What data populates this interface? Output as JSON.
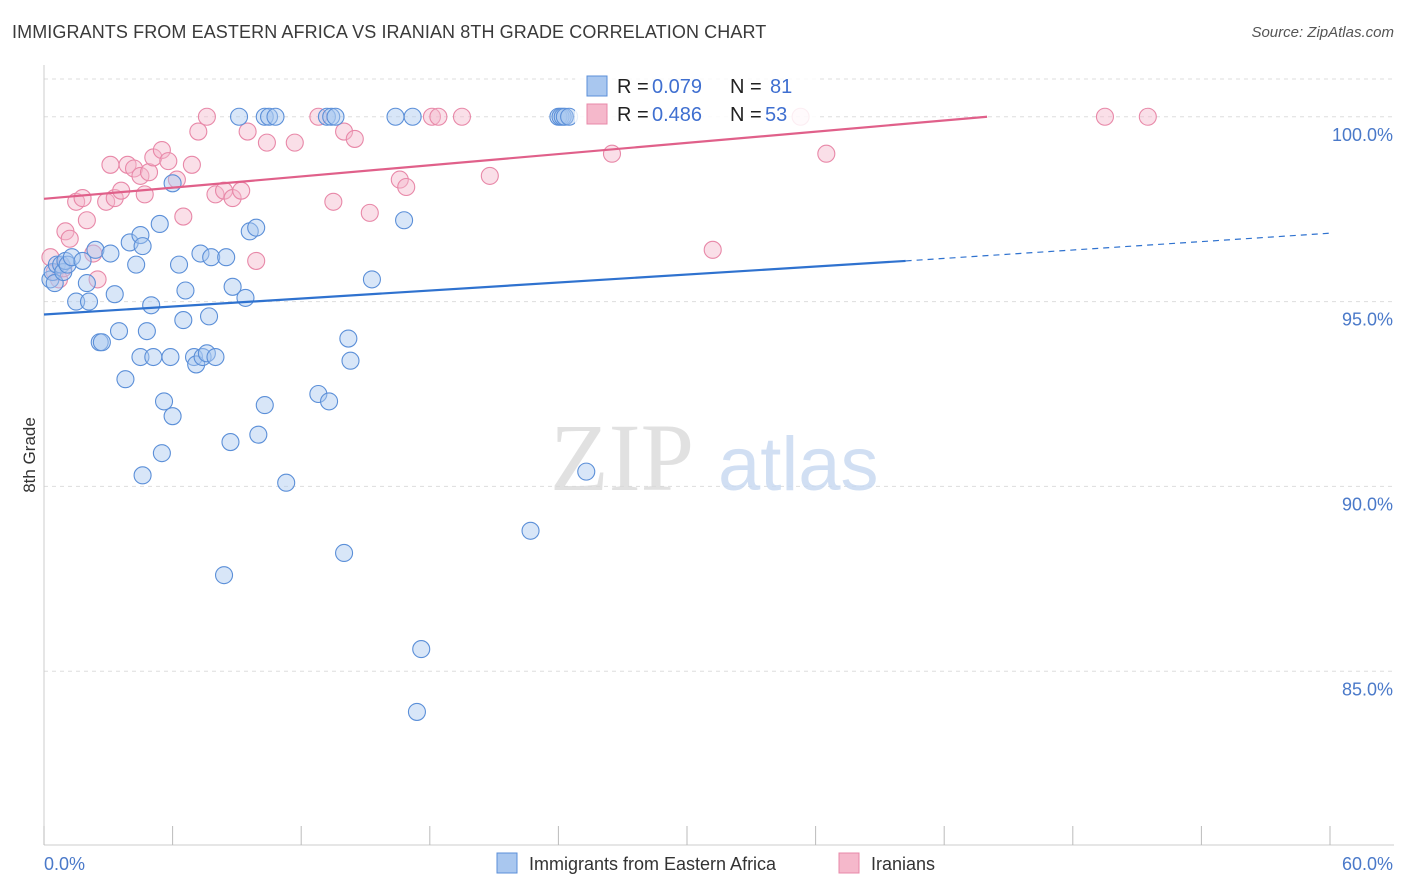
{
  "title": "IMMIGRANTS FROM EASTERN AFRICA VS IRANIAN 8TH GRADE CORRELATION CHART",
  "source": "Source: ZipAtlas.com",
  "watermark": {
    "zip": "ZIP",
    "atlas": "atlas"
  },
  "colors": {
    "blue_fill": "#a9c7ef",
    "blue_stroke": "#5b8fd8",
    "blue_line": "#2f72cf",
    "pink_fill": "#f5b8cb",
    "pink_stroke": "#e888a8",
    "pink_line": "#e0608a",
    "label_blue": "#4a79c9",
    "grid": "#dddddd"
  },
  "stats": {
    "blue": {
      "r_label": "R = ",
      "r_value": "0.079",
      "n_label": "N = ",
      "n_value": "81"
    },
    "pink": {
      "r_label": "R = ",
      "r_value": "0.486",
      "n_label": "N = ",
      "n_value": "53"
    }
  },
  "legend": [
    "Immigrants from Eastern Africa",
    "Iranians"
  ],
  "chart_data": {
    "type": "scatter",
    "title": "IMMIGRANTS FROM EASTERN AFRICA VS IRANIAN 8TH GRADE CORRELATION CHART",
    "xlabel": "",
    "ylabel": "8th Grade",
    "xlim": [
      0,
      60
    ],
    "ylim": [
      80.3,
      101.4
    ],
    "x_tick_labels": [
      "0.0%",
      "60.0%"
    ],
    "y_ticks": [
      85,
      90,
      95,
      100
    ],
    "y_tick_labels": [
      "85.0%",
      "90.0%",
      "95.0%",
      "100.0%"
    ],
    "grid": true,
    "legend_position": "bottom",
    "series": [
      {
        "name": "Immigrants from Eastern Africa",
        "color": "#a9c7ef",
        "trend": {
          "x": [
            0,
            40.2
          ],
          "y": [
            94.65,
            96.1
          ],
          "dashed_to": [
            60,
            96.85
          ]
        },
        "points": [
          [
            0.3,
            95.6
          ],
          [
            0.4,
            95.8
          ],
          [
            0.5,
            95.5
          ],
          [
            0.6,
            96.0
          ],
          [
            0.8,
            96.0
          ],
          [
            0.9,
            95.8
          ],
          [
            1.0,
            96.1
          ],
          [
            1.1,
            96.0
          ],
          [
            1.3,
            96.2
          ],
          [
            1.5,
            95.0
          ],
          [
            1.8,
            96.1
          ],
          [
            2.0,
            95.5
          ],
          [
            2.1,
            95.0
          ],
          [
            2.4,
            96.4
          ],
          [
            2.6,
            93.9
          ],
          [
            2.7,
            93.9
          ],
          [
            3.1,
            96.3
          ],
          [
            3.3,
            95.2
          ],
          [
            3.5,
            94.2
          ],
          [
            3.8,
            92.9
          ],
          [
            4.0,
            96.6
          ],
          [
            4.3,
            96.0
          ],
          [
            4.5,
            96.8
          ],
          [
            4.5,
            93.5
          ],
          [
            4.6,
            96.5
          ],
          [
            4.6,
            90.3
          ],
          [
            4.8,
            94.2
          ],
          [
            5.0,
            94.9
          ],
          [
            5.1,
            93.5
          ],
          [
            5.4,
            97.1
          ],
          [
            5.5,
            90.9
          ],
          [
            5.6,
            92.3
          ],
          [
            5.9,
            93.5
          ],
          [
            6.0,
            91.9
          ],
          [
            6.0,
            98.2
          ],
          [
            6.3,
            96.0
          ],
          [
            6.5,
            94.5
          ],
          [
            6.6,
            95.3
          ],
          [
            7.0,
            93.5
          ],
          [
            7.1,
            93.3
          ],
          [
            7.3,
            96.3
          ],
          [
            7.4,
            93.5
          ],
          [
            7.6,
            93.6
          ],
          [
            7.7,
            94.6
          ],
          [
            7.8,
            96.2
          ],
          [
            8.0,
            93.5
          ],
          [
            8.4,
            87.6
          ],
          [
            8.5,
            96.2
          ],
          [
            8.7,
            91.2
          ],
          [
            8.8,
            95.4
          ],
          [
            9.1,
            100.0
          ],
          [
            9.4,
            95.1
          ],
          [
            9.6,
            96.9
          ],
          [
            9.9,
            97.0
          ],
          [
            10.0,
            91.4
          ],
          [
            10.3,
            92.2
          ],
          [
            10.3,
            100.0
          ],
          [
            10.5,
            100.0
          ],
          [
            10.8,
            100.0
          ],
          [
            11.3,
            90.1
          ],
          [
            12.8,
            92.5
          ],
          [
            13.2,
            100.0
          ],
          [
            13.3,
            92.3
          ],
          [
            13.4,
            100.0
          ],
          [
            13.6,
            100.0
          ],
          [
            14.0,
            88.2
          ],
          [
            14.2,
            94.0
          ],
          [
            14.3,
            93.4
          ],
          [
            15.3,
            95.6
          ],
          [
            16.4,
            100.0
          ],
          [
            16.8,
            97.2
          ],
          [
            17.2,
            100.0
          ],
          [
            17.4,
            83.9
          ],
          [
            17.6,
            85.6
          ],
          [
            22.7,
            88.8
          ],
          [
            24.0,
            100.0
          ],
          [
            24.1,
            100.0
          ],
          [
            24.2,
            100.0
          ],
          [
            24.3,
            100.0
          ],
          [
            24.5,
            100.0
          ],
          [
            25.3,
            90.4
          ]
        ]
      },
      {
        "name": "Iranians",
        "color": "#f5b8cb",
        "trend": {
          "x": [
            0,
            44
          ],
          "y": [
            97.78,
            100.0
          ]
        },
        "points": [
          [
            0.3,
            96.2
          ],
          [
            0.5,
            95.8
          ],
          [
            0.7,
            95.6
          ],
          [
            0.9,
            95.9
          ],
          [
            1.0,
            96.9
          ],
          [
            1.2,
            96.7
          ],
          [
            1.5,
            97.7
          ],
          [
            1.8,
            97.8
          ],
          [
            2.0,
            97.2
          ],
          [
            2.3,
            96.3
          ],
          [
            2.5,
            95.6
          ],
          [
            2.9,
            97.7
          ],
          [
            3.1,
            98.7
          ],
          [
            3.3,
            97.8
          ],
          [
            3.6,
            98.0
          ],
          [
            3.9,
            98.7
          ],
          [
            4.2,
            98.6
          ],
          [
            4.5,
            98.4
          ],
          [
            4.7,
            97.9
          ],
          [
            4.9,
            98.5
          ],
          [
            5.1,
            98.9
          ],
          [
            5.5,
            99.1
          ],
          [
            5.8,
            98.8
          ],
          [
            6.2,
            98.3
          ],
          [
            6.5,
            97.3
          ],
          [
            6.9,
            98.7
          ],
          [
            7.2,
            99.6
          ],
          [
            7.6,
            100.0
          ],
          [
            8.0,
            97.9
          ],
          [
            8.4,
            98.0
          ],
          [
            8.8,
            97.8
          ],
          [
            9.2,
            98.0
          ],
          [
            9.5,
            99.6
          ],
          [
            9.9,
            96.1
          ],
          [
            10.4,
            99.3
          ],
          [
            11.7,
            99.3
          ],
          [
            12.8,
            100.0
          ],
          [
            13.5,
            97.7
          ],
          [
            14.0,
            99.6
          ],
          [
            14.5,
            99.4
          ],
          [
            15.2,
            97.4
          ],
          [
            16.6,
            98.3
          ],
          [
            16.9,
            98.1
          ],
          [
            18.1,
            100.0
          ],
          [
            18.4,
            100.0
          ],
          [
            19.5,
            100.0
          ],
          [
            20.8,
            98.4
          ],
          [
            26.5,
            99.0
          ],
          [
            31.2,
            96.4
          ],
          [
            35.3,
            100.0
          ],
          [
            36.5,
            99.0
          ],
          [
            49.5,
            100.0
          ],
          [
            51.5,
            100.0
          ]
        ]
      }
    ]
  }
}
